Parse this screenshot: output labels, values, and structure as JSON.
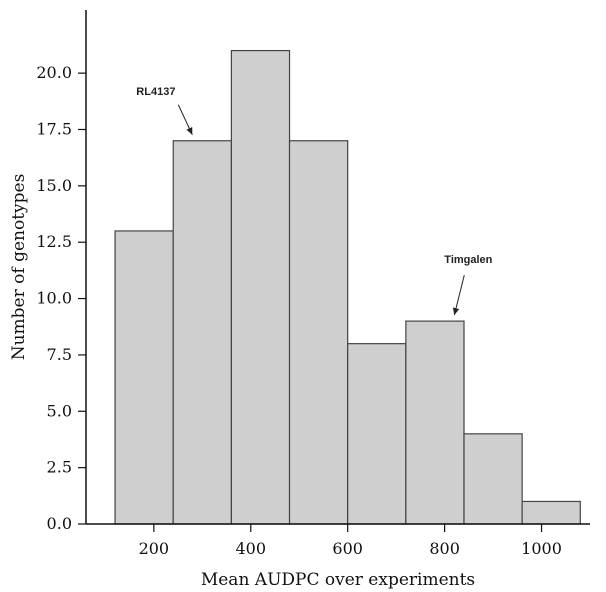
{
  "chart_data": {
    "type": "bar",
    "bins": [
      {
        "start": 120,
        "end": 240,
        "value": 13
      },
      {
        "start": 240,
        "end": 360,
        "value": 17
      },
      {
        "start": 360,
        "end": 480,
        "value": 21
      },
      {
        "start": 480,
        "end": 600,
        "value": 17
      },
      {
        "start": 600,
        "end": 720,
        "value": 8
      },
      {
        "start": 720,
        "end": 840,
        "value": 9
      },
      {
        "start": 840,
        "end": 960,
        "value": 4
      },
      {
        "start": 960,
        "end": 1080,
        "value": 1
      }
    ],
    "xlabel": "Mean AUDPC over experiments",
    "ylabel": "Number of genotypes",
    "xlim": [
      60,
      1100
    ],
    "ylim": [
      0,
      22.8
    ],
    "xticks": [
      200,
      400,
      600,
      800,
      1000
    ],
    "xtick_labels": [
      "200",
      "400",
      "600",
      "800",
      "1000"
    ],
    "yticks": [
      0.0,
      2.5,
      5.0,
      7.5,
      10.0,
      12.5,
      15.0,
      17.5,
      20.0
    ],
    "ytick_labels": [
      "0.0",
      "2.5",
      "5.0",
      "7.5",
      "10.0",
      "12.5",
      "15.0",
      "17.5",
      "20.0"
    ],
    "annotations": [
      {
        "text": "RL4137",
        "target_x": 300,
        "target_y": 17
      },
      {
        "text": "Timgalen",
        "target_x": 820,
        "target_y": 9
      }
    ],
    "grid": false,
    "legend": "none"
  },
  "colors": {
    "bar_fill": "#cfcfcf",
    "bar_stroke": "#444444",
    "axis": "#111111"
  }
}
